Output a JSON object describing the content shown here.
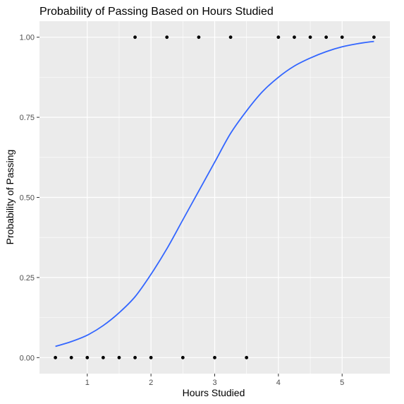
{
  "chart_data": {
    "type": "scatter",
    "title": "Probability of Passing Based on Hours Studied",
    "xlabel": "Hours Studied",
    "ylabel": "Probability of Passing",
    "xlim": [
      0.25,
      5.75
    ],
    "ylim": [
      -0.05,
      1.05
    ],
    "x_ticks": [
      1,
      2,
      3,
      4,
      5
    ],
    "x_tick_labels": [
      "1",
      "2",
      "3",
      "4",
      "5"
    ],
    "y_ticks": [
      0,
      0.25,
      0.5,
      0.75,
      1.0
    ],
    "y_tick_labels": [
      "0.00",
      "0.25",
      "0.50",
      "0.75",
      "1.00"
    ],
    "grid": true,
    "background_color": "#ebebeb",
    "grid_color": "#ffffff",
    "point_color": "#000000",
    "curve_color": "#3366ff",
    "points": [
      {
        "x": 0.5,
        "y": 0
      },
      {
        "x": 0.75,
        "y": 0
      },
      {
        "x": 1.0,
        "y": 0
      },
      {
        "x": 1.25,
        "y": 0
      },
      {
        "x": 1.5,
        "y": 0
      },
      {
        "x": 1.75,
        "y": 0
      },
      {
        "x": 1.75,
        "y": 1
      },
      {
        "x": 2.0,
        "y": 0
      },
      {
        "x": 2.25,
        "y": 1
      },
      {
        "x": 2.5,
        "y": 0
      },
      {
        "x": 2.75,
        "y": 1
      },
      {
        "x": 3.0,
        "y": 0
      },
      {
        "x": 3.25,
        "y": 1
      },
      {
        "x": 3.5,
        "y": 0
      },
      {
        "x": 4.0,
        "y": 1
      },
      {
        "x": 4.25,
        "y": 1
      },
      {
        "x": 4.5,
        "y": 1
      },
      {
        "x": 4.75,
        "y": 1
      },
      {
        "x": 5.0,
        "y": 1
      },
      {
        "x": 5.5,
        "y": 1
      }
    ],
    "fitted_curve": {
      "type": "logistic",
      "x": [
        0.5,
        0.75,
        1.0,
        1.25,
        1.5,
        1.75,
        2.0,
        2.25,
        2.5,
        2.75,
        3.0,
        3.25,
        3.5,
        3.75,
        4.0,
        4.25,
        4.5,
        4.75,
        5.0,
        5.25,
        5.5
      ],
      "y": [
        0.035,
        0.05,
        0.07,
        0.1,
        0.14,
        0.19,
        0.26,
        0.34,
        0.43,
        0.52,
        0.61,
        0.7,
        0.77,
        0.83,
        0.875,
        0.91,
        0.935,
        0.955,
        0.97,
        0.98,
        0.987
      ]
    }
  }
}
